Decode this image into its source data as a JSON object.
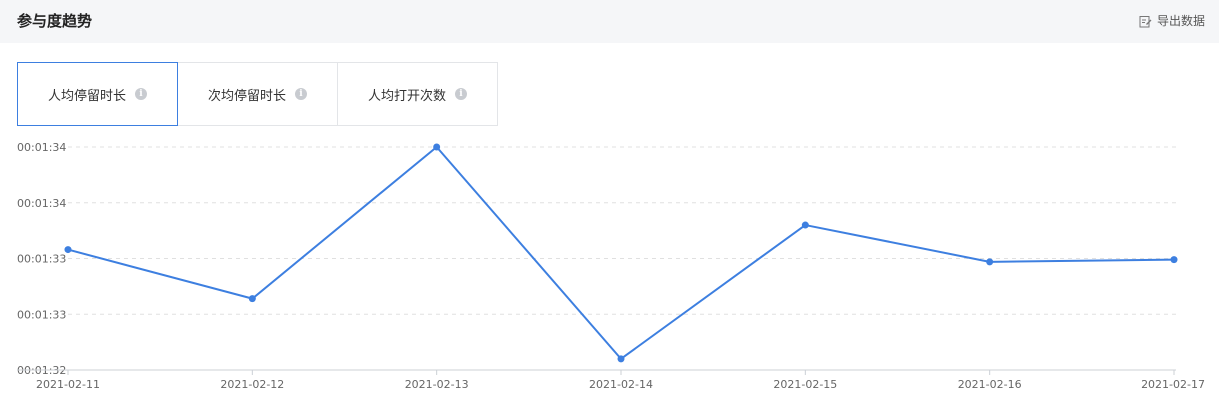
{
  "header": {
    "title": "参与度趋势",
    "export_label": "导出数据"
  },
  "tabs": [
    {
      "label": "人均停留时长",
      "active": true
    },
    {
      "label": "次均停留时长",
      "active": false
    },
    {
      "label": "人均打开次数",
      "active": false
    }
  ],
  "colors": {
    "line": "#3d7fe0",
    "active_tab_border": "#3d7fe0",
    "grid": "#e0e0e0"
  },
  "chart_data": {
    "type": "line",
    "categories": [
      "2021-02-11",
      "2021-02-12",
      "2021-02-13",
      "2021-02-14",
      "2021-02-15",
      "2021-02-16",
      "2021-02-17"
    ],
    "y_tick_labels": [
      "00:01:34",
      "00:01:34",
      "00:01:33",
      "00:01:33",
      "00:01:32"
    ],
    "ylim_seconds": [
      92,
      94
    ],
    "series": [
      {
        "values_seconds": [
          93.08,
          92.64,
          94.0,
          92.1,
          93.3,
          92.97,
          92.99
        ]
      }
    ],
    "grid": "dashed horizontal"
  }
}
